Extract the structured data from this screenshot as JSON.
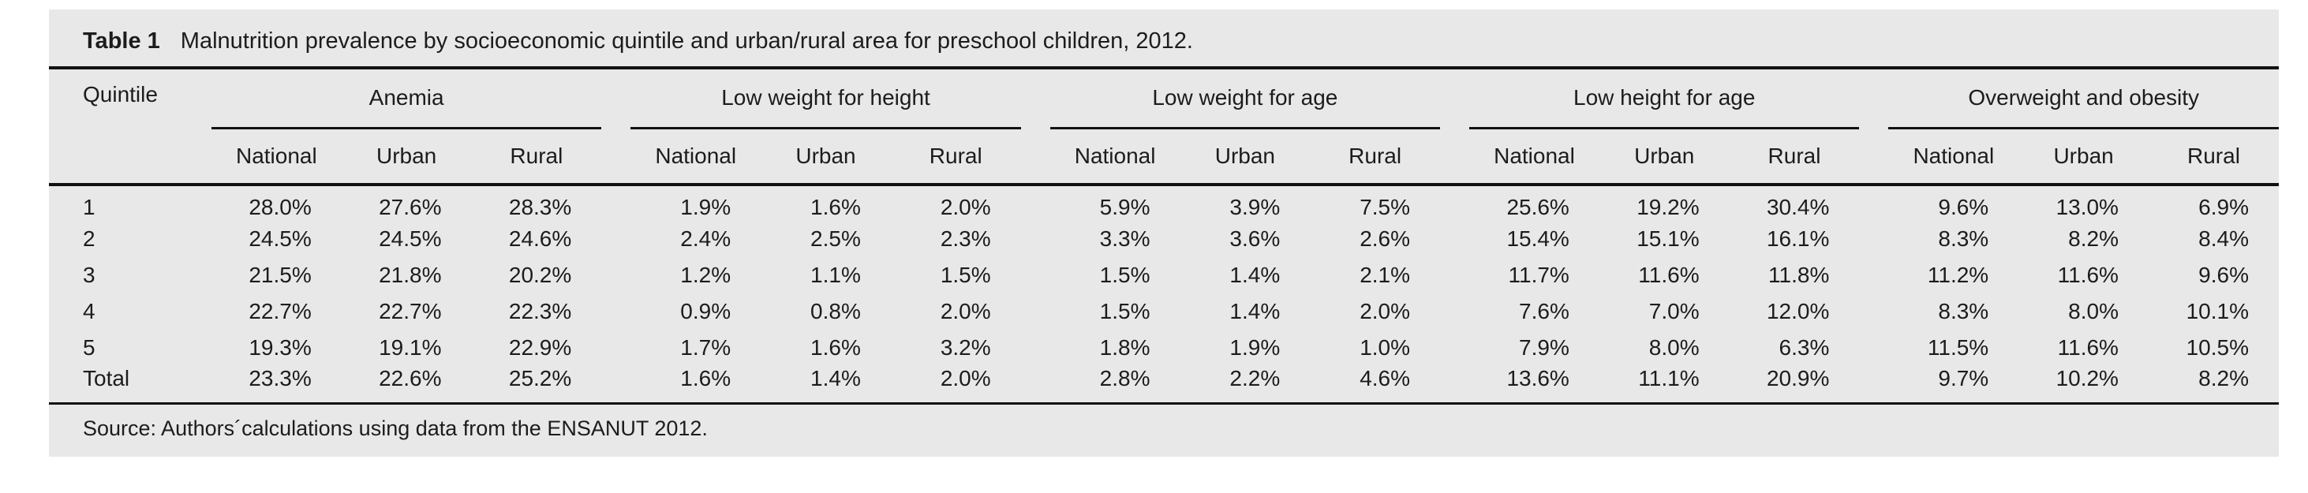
{
  "table": {
    "label": "Table 1",
    "caption": "Malnutrition prevalence by socioeconomic quintile and urban/rural area for preschool children, 2012.",
    "quintile_header": "Quintile",
    "groups": [
      {
        "label": "Anemia"
      },
      {
        "label": "Low weight for height"
      },
      {
        "label": "Low weight for age"
      },
      {
        "label": "Low height for age"
      },
      {
        "label": "Overweight and obesity"
      }
    ],
    "subcols": [
      "National",
      "Urban",
      "Rural"
    ],
    "rows": [
      {
        "label": "1",
        "cells": [
          "28.0%",
          "27.6%",
          "28.3%",
          "1.9%",
          "1.6%",
          "2.0%",
          "5.9%",
          "3.9%",
          "7.5%",
          "25.6%",
          "19.2%",
          "30.4%",
          "9.6%",
          "13.0%",
          "6.9%"
        ]
      },
      {
        "label": "2",
        "cells": [
          "24.5%",
          "24.5%",
          "24.6%",
          "2.4%",
          "2.5%",
          "2.3%",
          "3.3%",
          "3.6%",
          "2.6%",
          "15.4%",
          "15.1%",
          "16.1%",
          "8.3%",
          "8.2%",
          "8.4%"
        ]
      },
      {
        "label": "3",
        "cells": [
          "21.5%",
          "21.8%",
          "20.2%",
          "1.2%",
          "1.1%",
          "1.5%",
          "1.5%",
          "1.4%",
          "2.1%",
          "11.7%",
          "11.6%",
          "11.8%",
          "11.2%",
          "11.6%",
          "9.6%"
        ]
      },
      {
        "label": "4",
        "cells": [
          "22.7%",
          "22.7%",
          "22.3%",
          "0.9%",
          "0.8%",
          "2.0%",
          "1.5%",
          "1.4%",
          "2.0%",
          "7.6%",
          "7.0%",
          "12.0%",
          "8.3%",
          "8.0%",
          "10.1%"
        ]
      },
      {
        "label": "5",
        "cells": [
          "19.3%",
          "19.1%",
          "22.9%",
          "1.7%",
          "1.6%",
          "3.2%",
          "1.8%",
          "1.9%",
          "1.0%",
          "7.9%",
          "8.0%",
          "6.3%",
          "11.5%",
          "11.6%",
          "10.5%"
        ]
      },
      {
        "label": "Total",
        "cells": [
          "23.3%",
          "22.6%",
          "25.2%",
          "1.6%",
          "1.4%",
          "2.0%",
          "2.8%",
          "2.2%",
          "4.6%",
          "13.6%",
          "11.1%",
          "20.9%",
          "9.7%",
          "10.2%",
          "8.2%"
        ]
      }
    ],
    "source": "Source: Authors´calculations using data from the ENSANUT 2012."
  }
}
